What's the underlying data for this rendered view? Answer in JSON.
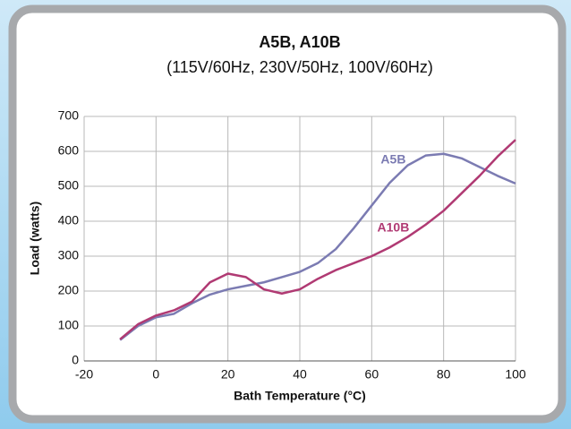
{
  "chart_data": {
    "type": "line",
    "title": "A5B, A10B",
    "subtitle": "(115V/60Hz, 230V/50Hz, 100V/60Hz)",
    "xlabel": "Bath Temperature (°C)",
    "ylabel": "Load (watts)",
    "x": [
      -10,
      -5,
      0,
      5,
      10,
      15,
      20,
      25,
      30,
      35,
      40,
      45,
      50,
      55,
      60,
      65,
      70,
      75,
      80,
      85,
      90,
      95,
      100
    ],
    "series": [
      {
        "name": "A5B",
        "color": "#7b7bb2",
        "values": [
          60,
          100,
          125,
          135,
          165,
          190,
          205,
          215,
          225,
          240,
          255,
          280,
          320,
          380,
          445,
          510,
          560,
          588,
          593,
          580,
          555,
          530,
          508
        ]
      },
      {
        "name": "A10B",
        "color": "#b03a73",
        "values": [
          62,
          105,
          130,
          145,
          170,
          225,
          250,
          240,
          205,
          193,
          205,
          235,
          260,
          280,
          300,
          325,
          355,
          390,
          430,
          480,
          530,
          585,
          633
        ]
      }
    ],
    "xlim": [
      -20,
      100
    ],
    "xticks": [
      -20,
      0,
      20,
      40,
      60,
      80,
      100
    ],
    "ylim": [
      0,
      700
    ],
    "yticks": [
      0,
      100,
      200,
      300,
      400,
      500,
      600,
      700
    ],
    "grid": true
  }
}
